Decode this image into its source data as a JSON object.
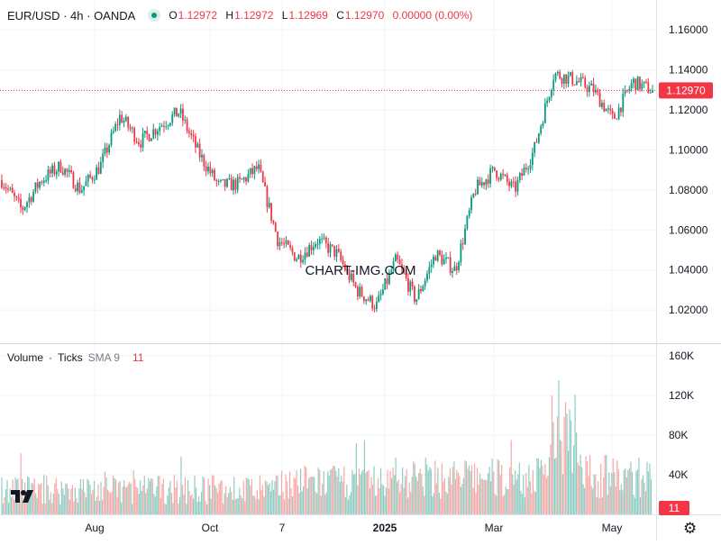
{
  "header": {
    "symbol": "EUR/USD · 4h · OANDA",
    "ohlc": {
      "O": "1.12972",
      "H": "1.12972",
      "L": "1.12969",
      "C": "1.12970",
      "change": "0.00000 (0.00%)"
    }
  },
  "price_axis": {
    "ticks": [
      "1.16000",
      "1.14000",
      "1.12000",
      "1.10000",
      "1.08000",
      "1.06000",
      "1.04000",
      "1.02000"
    ],
    "last_price_label": "1.12970"
  },
  "volume_pane": {
    "title": "Volume",
    "sep": "·",
    "unit": "Ticks",
    "sma_label": "SMA 9",
    "sma_value": "11",
    "axis_ticks": [
      "160K",
      "120K",
      "80K",
      "40K"
    ],
    "last_value_label": "11"
  },
  "time_axis": {
    "labels": [
      "Aug",
      "Oct",
      "7",
      "2025",
      "Mar",
      "May"
    ]
  },
  "watermark": "CHART-IMG.COM",
  "colors": {
    "up": "#089981",
    "down": "#f23645",
    "up_volume": "#8fcdc3",
    "down_volume": "#f7a9a7",
    "grid": "#f0f3fa",
    "last_price": "#f23645"
  },
  "icons": [
    "tradingview-logo-icon",
    "gear-icon"
  ],
  "chart_data": [
    {
      "type": "candlestick",
      "title": "EUR/USD · 4h · OANDA",
      "timeframe": "4h",
      "y_range": [
        1.01,
        1.17
      ],
      "last_price": 1.1297,
      "x_labels": [
        "Aug",
        "Oct",
        "7",
        "2025",
        "Mar",
        "May"
      ],
      "y_ticks": [
        1.16,
        1.14,
        1.12,
        1.1,
        1.08,
        1.06,
        1.04,
        1.02
      ],
      "grid": true,
      "price_path": [
        [
          "start (~Jun 2024)",
          1.085
        ],
        [
          "late Jun 2024",
          1.07
        ],
        [
          "early Jul 2024",
          1.085
        ],
        [
          "mid Jul 2024",
          1.092
        ],
        [
          "late Jul 2024",
          1.08
        ],
        [
          "early Aug 2024",
          1.092
        ],
        [
          "late Aug 2024",
          1.117
        ],
        [
          "early Sep 2024",
          1.104
        ],
        [
          "mid Sep 2024",
          1.112
        ],
        [
          "late Sep 2024",
          1.119
        ],
        [
          "early Oct 2024",
          1.098
        ],
        [
          "mid Oct 2024",
          1.082
        ],
        [
          "late Oct 2024",
          1.083
        ],
        [
          "early Nov 2024",
          1.091
        ],
        [
          "mid Nov 2024",
          1.055
        ],
        [
          "late Nov 2024",
          1.046
        ],
        [
          "early Dec 2024",
          1.055
        ],
        [
          "mid Dec 2024",
          1.048
        ],
        [
          "early Jan 2025",
          1.03
        ],
        [
          "mid Jan 2025",
          1.022
        ],
        [
          "late Jan 2025",
          1.045
        ],
        [
          "early Feb 2025",
          1.025
        ],
        [
          "mid Feb 2025",
          1.048
        ],
        [
          "late Feb 2025",
          1.04
        ],
        [
          "early Mar 2025",
          1.08
        ],
        [
          "mid Mar 2025",
          1.09
        ],
        [
          "late Mar 2025",
          1.08
        ],
        [
          "early Apr 2025",
          1.1
        ],
        [
          "mid Apr 2025",
          1.138
        ],
        [
          "late Apr 2025",
          1.135
        ],
        [
          "early May 2025",
          1.13
        ],
        [
          "mid May 2025",
          1.115
        ],
        [
          "late May 2025",
          1.134
        ],
        [
          "end",
          1.1297
        ]
      ],
      "notable_extremes": {
        "high": 1.158,
        "low": 1.018
      }
    },
    {
      "type": "bar",
      "title": "Volume · Ticks",
      "y_range": [
        0,
        170000
      ],
      "y_ticks": [
        160000,
        120000,
        80000,
        40000
      ],
      "sma_period": 9,
      "sma_last": 11,
      "last_volume": 11,
      "volume_envelope": [
        [
          "Jun–Sep 2024",
          10000,
          40000
        ],
        [
          "Oct–Dec 2024",
          15000,
          50000
        ],
        [
          "Jan–Mar 2025",
          15000,
          60000
        ],
        [
          "early Apr 2025",
          40000,
          150000
        ],
        [
          "late Apr–May 2025",
          15000,
          60000
        ]
      ]
    }
  ]
}
